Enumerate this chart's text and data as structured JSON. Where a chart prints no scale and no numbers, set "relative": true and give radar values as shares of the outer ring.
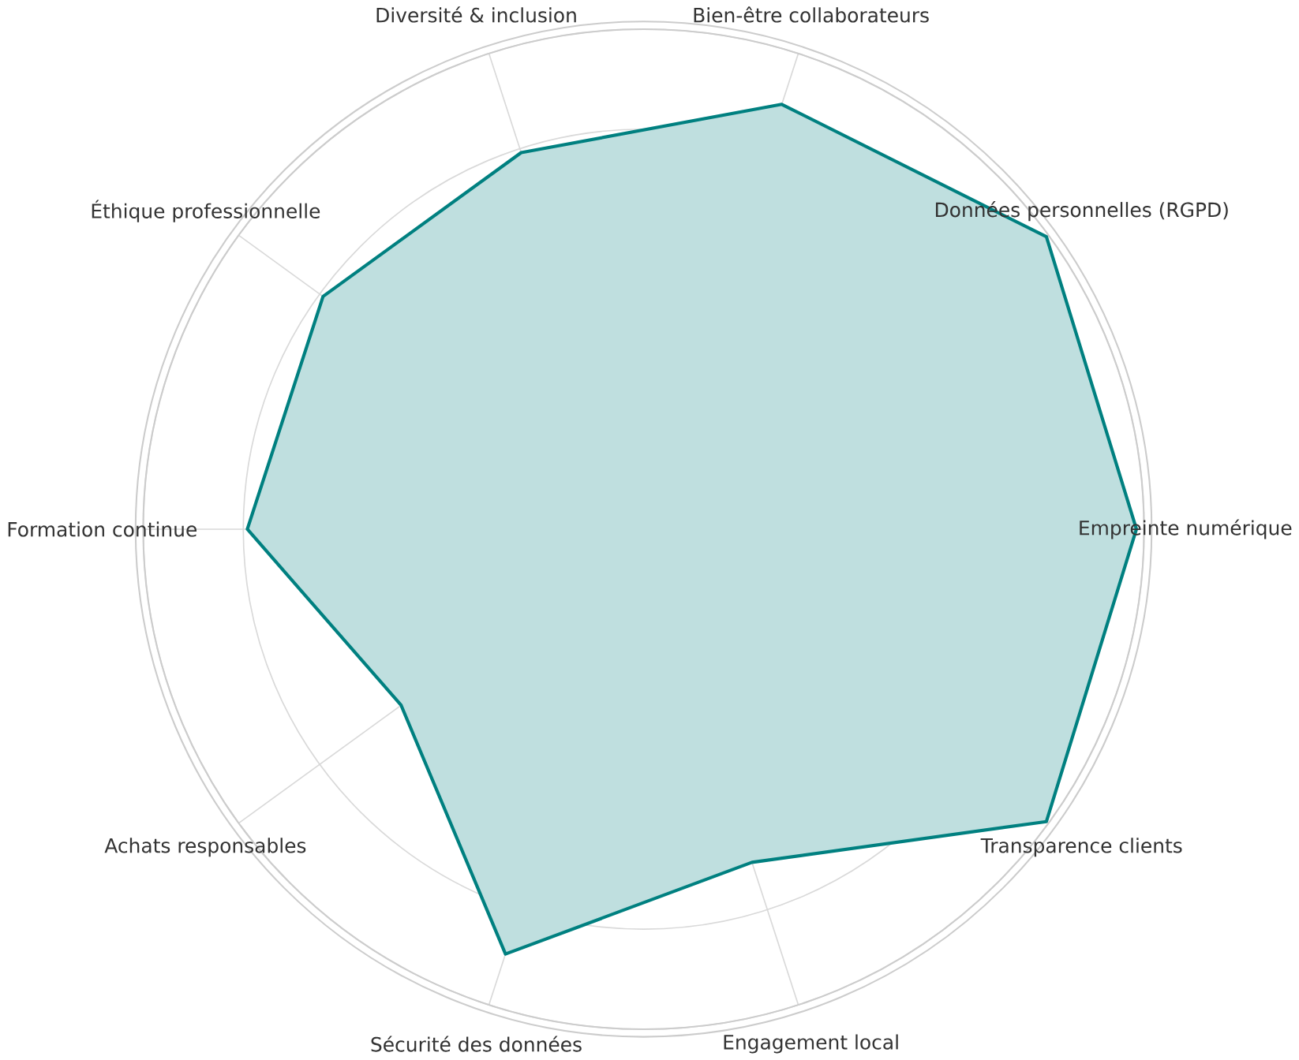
{
  "chart_data": {
    "type": "radar",
    "relative": true,
    "grid": true,
    "categories": [
      "Bien-être collaborateurs",
      "Données personnelles (RGPD)",
      "Empreinte numérique",
      "Transparence clients",
      "Engagement local",
      "Sécurité des données",
      "Achats responsables",
      "Formation continue",
      "Éthique professionnelle",
      "Diversité & inclusion"
    ],
    "series": [
      {
        "color": "#008080",
        "values": [
          0.88,
          0.98,
          0.97,
          0.98,
          0.69,
          0.88,
          0.59,
          0.78,
          0.78,
          0.78
        ]
      }
    ]
  }
}
